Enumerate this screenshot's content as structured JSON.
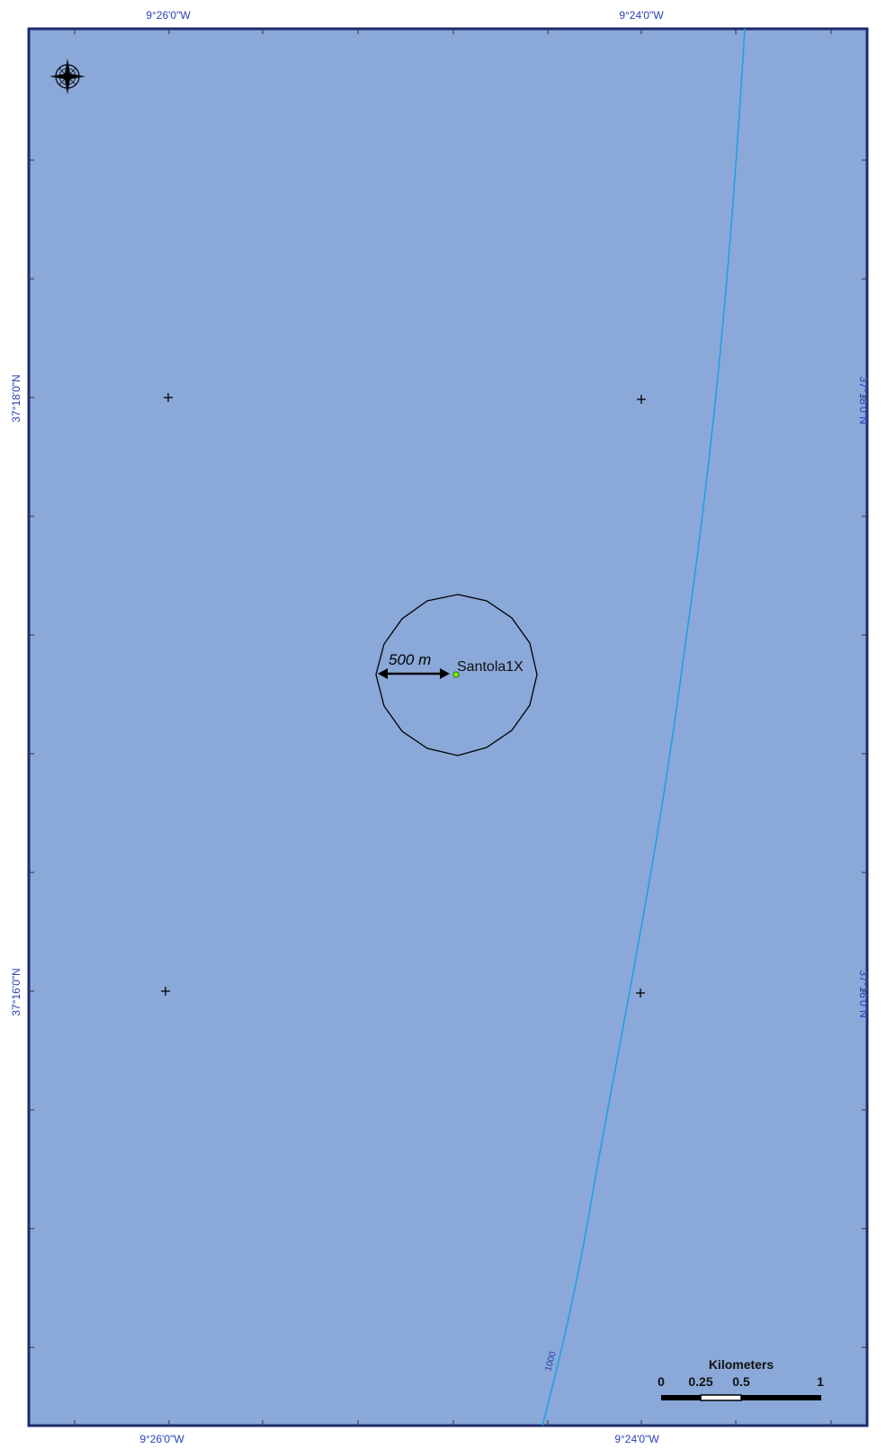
{
  "graticule": {
    "top_labels": [
      "9°26'0\"W",
      "9°24'0\"W"
    ],
    "bottom_labels": [
      "9°26'0\"W",
      "9°24'0\"W"
    ],
    "left_labels": [
      "37°18'0\"N",
      "37°16'0\"N"
    ],
    "right_labels": [
      "37°18'0\"N",
      "37°16'0\"N"
    ]
  },
  "well": {
    "name": "Santola1X",
    "buffer_label": "500 m"
  },
  "contour": {
    "label": "1000"
  },
  "scalebar": {
    "title": "Kilometers",
    "ticks": [
      "0",
      "0.25",
      "0.5",
      "1"
    ]
  },
  "icons": {
    "north": "compass-rose-icon"
  },
  "colors": {
    "sea": "#8aa8d8",
    "frame": "#1f2a6e",
    "contour": "#1aa0e6",
    "graticule_text": "#2a3fb5",
    "well_point": "#7cfc00"
  }
}
